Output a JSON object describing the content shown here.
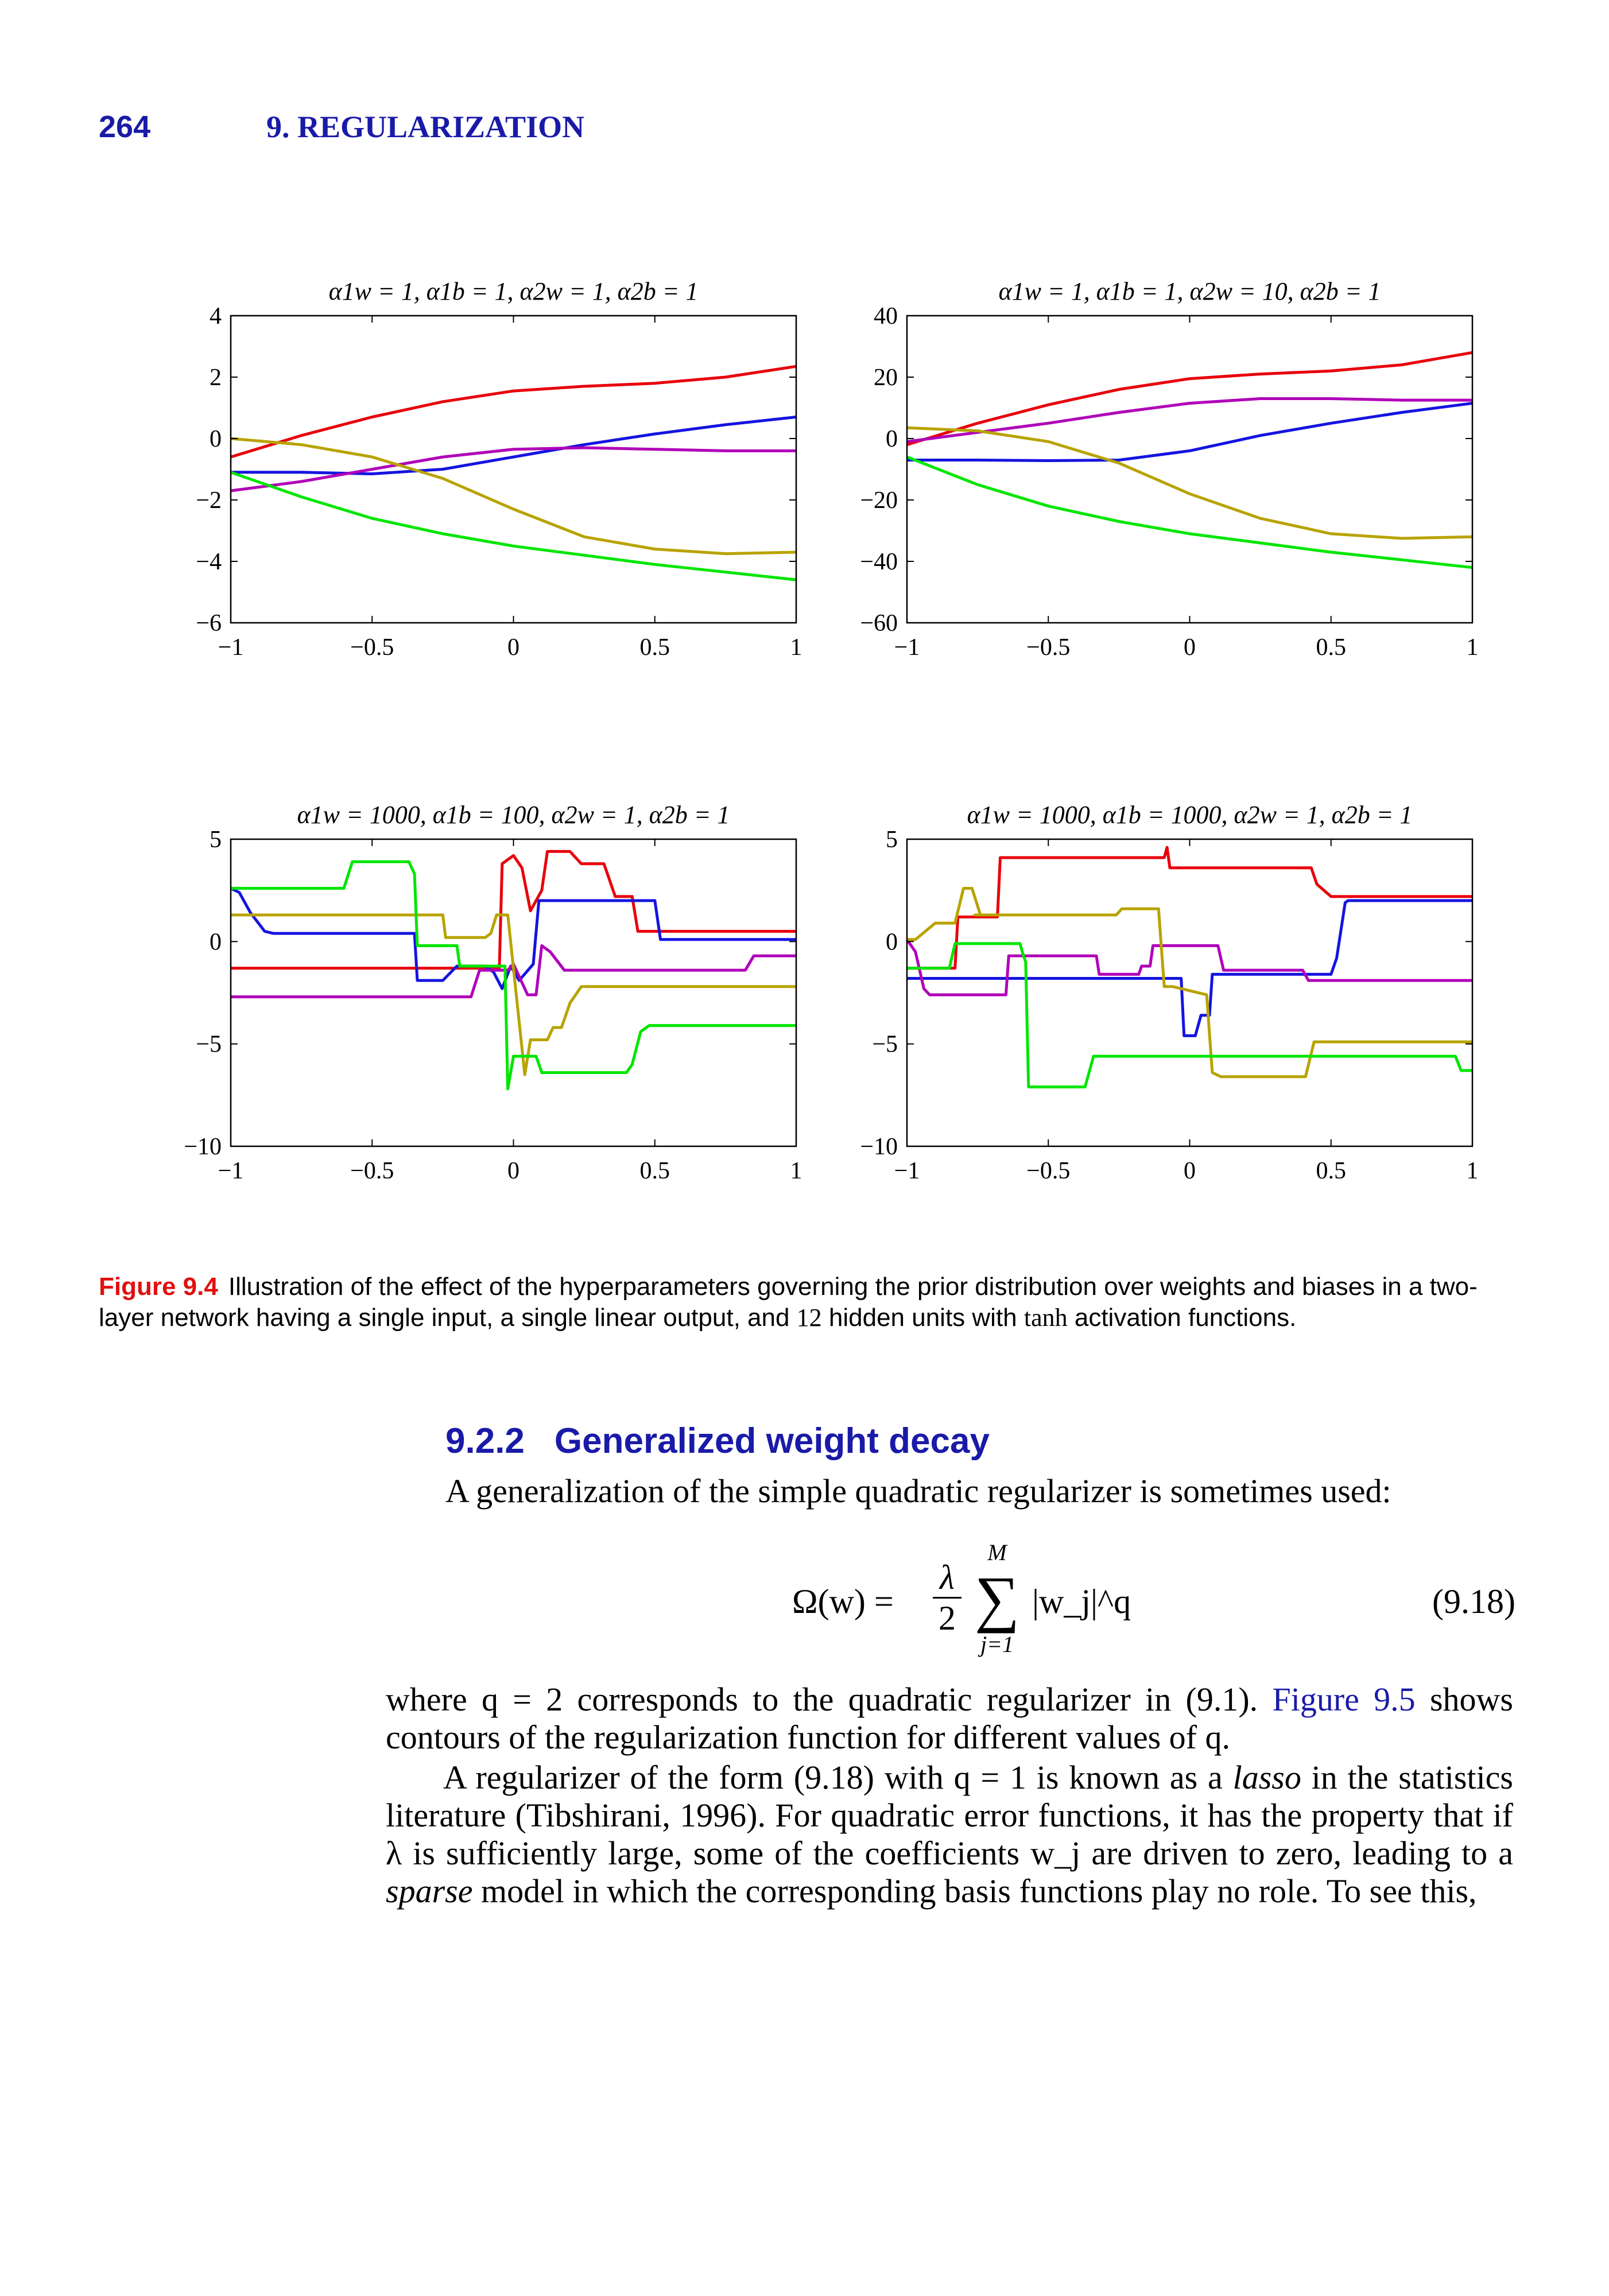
{
  "header": {
    "page_number": "264",
    "chapter_title": "9. REGULARIZATION"
  },
  "figure": {
    "label": "Figure 9.4",
    "caption_parts": [
      "Illustration of the effect of the hyperparameters governing the prior distribution over weights and biases in a two-layer network having a single input, a single linear output, and ",
      "12",
      " hidden units with ",
      "tanh",
      " activation functions."
    ]
  },
  "section": {
    "number": "9.2.2",
    "title": "Generalized weight decay",
    "intro": "A generalization of the simple quadratic regularizer is sometimes used:"
  },
  "equation": {
    "lhs": "Ω(w) =",
    "numerator": "λ",
    "denominator": "2",
    "sum_upper": "M",
    "sum_symbol": "∑",
    "sum_lower": "j=1",
    "rhs": "|w_j|^q",
    "number": "(9.18)"
  },
  "paragraphs": [
    {
      "parts": [
        "where q = 2 corresponds to the quadratic regularizer in (9.1). ",
        "Figure 9.5",
        " shows contours of the regularization function for different values of q."
      ]
    },
    {
      "parts": [
        "A regularizer of the form (9.18) with q = 1 is known as a ",
        "lasso",
        " in the statistics literature (Tibshirani, 1996). For quadratic error functions, it has the property that if λ is sufficiently large, some of the coefficients w_j are driven to zero, leading to a ",
        "sparse",
        " model in which the corresponding basis functions play no role. To see this,"
      ]
    }
  ],
  "series_colors": {
    "red": "#e8000b",
    "blue": "#1414e0",
    "magenta": "#b000b8",
    "olive": "#b8a300",
    "green": "#00e600"
  },
  "chart_data": [
    {
      "type": "line",
      "title": "α1w = 1, α1b = 1, α2w = 1, α2b = 1",
      "xlim": [
        -1,
        1
      ],
      "ylim": [
        -6,
        4
      ],
      "xticks": [
        "−1",
        "−0.5",
        "0",
        "0.5",
        "1"
      ],
      "yticks": [
        "4",
        "2",
        "0",
        "−2",
        "−4",
        "−6"
      ],
      "series": [
        {
          "color": "red",
          "x": [
            -1,
            -0.75,
            -0.5,
            -0.25,
            0,
            0.25,
            0.5,
            0.75,
            1
          ],
          "y": [
            -0.6,
            0.1,
            0.7,
            1.2,
            1.55,
            1.7,
            1.8,
            2.0,
            2.35
          ]
        },
        {
          "color": "blue",
          "x": [
            -1,
            -0.75,
            -0.5,
            -0.25,
            0,
            0.25,
            0.5,
            0.75,
            1
          ],
          "y": [
            -1.1,
            -1.1,
            -1.15,
            -1.0,
            -0.6,
            -0.2,
            0.15,
            0.45,
            0.7
          ]
        },
        {
          "color": "magenta",
          "x": [
            -1,
            -0.75,
            -0.5,
            -0.25,
            0,
            0.25,
            0.5,
            0.75,
            1
          ],
          "y": [
            -1.7,
            -1.4,
            -1.0,
            -0.6,
            -0.35,
            -0.3,
            -0.35,
            -0.4,
            -0.4
          ]
        },
        {
          "color": "olive",
          "x": [
            -1,
            -0.75,
            -0.5,
            -0.25,
            0,
            0.25,
            0.5,
            0.75,
            1
          ],
          "y": [
            0.0,
            -0.2,
            -0.6,
            -1.3,
            -2.3,
            -3.2,
            -3.6,
            -3.75,
            -3.7
          ]
        },
        {
          "color": "green",
          "x": [
            -1,
            -0.75,
            -0.5,
            -0.25,
            0,
            0.25,
            0.5,
            0.75,
            1
          ],
          "y": [
            -1.1,
            -1.9,
            -2.6,
            -3.1,
            -3.5,
            -3.8,
            -4.1,
            -4.35,
            -4.6
          ]
        }
      ]
    },
    {
      "type": "line",
      "title": "α1w = 1, α1b = 1, α2w = 10, α2b = 1",
      "xlim": [
        -1,
        1
      ],
      "ylim": [
        -60,
        40
      ],
      "xticks": [
        "−1",
        "−0.5",
        "0",
        "0.5",
        "1"
      ],
      "yticks": [
        "40",
        "20",
        "0",
        "−20",
        "−40",
        "−60"
      ],
      "series": [
        {
          "color": "red",
          "x": [
            -1,
            -0.75,
            -0.5,
            -0.25,
            0,
            0.25,
            0.5,
            0.75,
            1
          ],
          "y": [
            -2,
            5,
            11,
            16,
            19.5,
            21,
            22,
            24,
            28
          ]
        },
        {
          "color": "magenta",
          "x": [
            -1,
            -0.75,
            -0.5,
            -0.25,
            0,
            0.25,
            0.5,
            0.75,
            1
          ],
          "y": [
            -1,
            2,
            5,
            8.5,
            11.5,
            13,
            13,
            12.5,
            12.5
          ]
        },
        {
          "color": "blue",
          "x": [
            -1,
            -0.75,
            -0.5,
            -0.25,
            0,
            0.25,
            0.5,
            0.75,
            1
          ],
          "y": [
            -7,
            -7,
            -7.2,
            -7,
            -4,
            1,
            5,
            8.5,
            11.5
          ]
        },
        {
          "color": "olive",
          "x": [
            -1,
            -0.75,
            -0.5,
            -0.25,
            0,
            0.25,
            0.5,
            0.75,
            1
          ],
          "y": [
            3.5,
            2.5,
            -1,
            -8,
            -18,
            -26,
            -31,
            -32.5,
            -32
          ]
        },
        {
          "color": "green",
          "x": [
            -1,
            -0.75,
            -0.5,
            -0.25,
            0,
            0.25,
            0.5,
            0.75,
            1
          ],
          "y": [
            -6,
            -15,
            -22,
            -27,
            -31,
            -34,
            -37,
            -39.5,
            -42
          ]
        }
      ]
    },
    {
      "type": "line",
      "title": "α1w = 1000, α1b = 100, α2w = 1, α2b = 1",
      "xlim": [
        -1,
        1
      ],
      "ylim": [
        -10,
        5
      ],
      "xticks": [
        "−1",
        "−0.5",
        "0",
        "0.5",
        "1"
      ],
      "yticks": [
        "5",
        "0",
        "−5",
        "−10"
      ],
      "series": [
        {
          "color": "red",
          "x": [
            -1,
            -0.05,
            -0.04,
            0,
            0.03,
            0.06,
            0.1,
            0.12,
            0.2,
            0.24,
            0.32,
            0.36,
            0.42,
            0.44,
            0.5,
            1
          ],
          "y": [
            -1.3,
            -1.3,
            3.8,
            4.2,
            3.6,
            1.5,
            2.5,
            4.4,
            4.4,
            3.8,
            3.8,
            2.2,
            2.2,
            0.5,
            0.5,
            0.5
          ]
        },
        {
          "color": "blue",
          "x": [
            -1,
            -0.97,
            -0.93,
            -0.88,
            -0.85,
            -0.35,
            -0.34,
            -0.25,
            -0.2,
            -0.17,
            -0.1,
            -0.07,
            -0.04,
            -0.01,
            0.02,
            0.07,
            0.09,
            0.5,
            0.52,
            1
          ],
          "y": [
            2.6,
            2.4,
            1.4,
            0.5,
            0.4,
            0.4,
            -1.9,
            -1.9,
            -1.2,
            -1.2,
            -1.2,
            -1.5,
            -2.3,
            -1.2,
            -1.9,
            -1.1,
            2.0,
            2.0,
            0.1,
            0.1
          ]
        },
        {
          "color": "magenta",
          "x": [
            -1,
            -0.38,
            -0.37,
            -0.15,
            -0.12,
            -0.06,
            -0.02,
            0,
            0.05,
            0.08,
            0.1,
            0.13,
            0.18,
            0.82,
            0.85,
            1
          ],
          "y": [
            -2.7,
            -2.7,
            -2.7,
            -2.7,
            -1.4,
            -1.4,
            -1.4,
            -1.1,
            -2.6,
            -2.6,
            -0.2,
            -0.5,
            -1.4,
            -1.4,
            -0.7,
            -0.7
          ]
        },
        {
          "color": "olive",
          "x": [
            -1,
            -0.25,
            -0.24,
            -0.1,
            -0.08,
            -0.06,
            -0.02,
            0.04,
            0.06,
            0.07,
            0.12,
            0.14,
            0.17,
            0.2,
            0.24,
            1
          ],
          "y": [
            1.3,
            1.3,
            0.2,
            0.2,
            0.4,
            1.3,
            1.3,
            -6.5,
            -4.8,
            -4.8,
            -4.8,
            -4.2,
            -4.2,
            -3.0,
            -2.2,
            -2.2
          ]
        },
        {
          "color": "green",
          "x": [
            -1,
            -0.6,
            -0.57,
            -0.37,
            -0.35,
            -0.34,
            -0.2,
            -0.19,
            -0.03,
            -0.02,
            0,
            0.03,
            0.08,
            0.1,
            0.12,
            0.4,
            0.42,
            0.45,
            0.48,
            1
          ],
          "y": [
            2.6,
            2.6,
            3.9,
            3.9,
            3.3,
            -0.2,
            -0.2,
            -1.2,
            -1.2,
            -7.2,
            -5.6,
            -5.6,
            -5.6,
            -6.4,
            -6.4,
            -6.4,
            -6.0,
            -4.4,
            -4.1,
            -4.1
          ]
        }
      ]
    },
    {
      "type": "line",
      "title": "α1w = 1000, α1b = 1000, α2w = 1, α2b = 1",
      "xlim": [
        -1,
        1
      ],
      "ylim": [
        -10,
        5
      ],
      "xticks": [
        "−1",
        "−0.5",
        "0",
        "0.5",
        "1"
      ],
      "yticks": [
        "5",
        "0",
        "−5",
        "−10"
      ],
      "series": [
        {
          "color": "red",
          "x": [
            -1,
            -0.83,
            -0.82,
            -0.75,
            -0.72,
            -0.68,
            -0.67,
            -0.09,
            -0.08,
            -0.07,
            0.43,
            0.45,
            0.5,
            1
          ],
          "y": [
            -1.3,
            -1.3,
            1.2,
            1.2,
            1.2,
            1.2,
            4.1,
            4.1,
            4.6,
            3.6,
            3.6,
            2.8,
            2.2,
            2.2
          ]
        },
        {
          "color": "blue",
          "x": [
            -1,
            -0.03,
            -0.02,
            0.02,
            0.04,
            0.07,
            0.08,
            0.5,
            0.52,
            0.55,
            0.56,
            1
          ],
          "y": [
            -1.8,
            -1.8,
            -4.6,
            -4.6,
            -3.6,
            -3.6,
            -1.6,
            -1.6,
            -0.8,
            1.9,
            2.0,
            2.0
          ]
        },
        {
          "color": "magenta",
          "x": [
            -1,
            -0.97,
            -0.94,
            -0.92,
            -0.65,
            -0.64,
            -0.33,
            -0.32,
            -0.18,
            -0.17,
            -0.14,
            -0.13,
            0.1,
            0.12,
            0.4,
            0.42,
            1
          ],
          "y": [
            0.1,
            -0.5,
            -2.3,
            -2.6,
            -2.6,
            -0.7,
            -0.7,
            -1.6,
            -1.6,
            -1.2,
            -1.2,
            -0.2,
            -0.2,
            -1.4,
            -1.4,
            -1.9,
            -1.9
          ]
        },
        {
          "color": "olive",
          "x": [
            -1,
            -0.97,
            -0.9,
            -0.83,
            -0.8,
            -0.77,
            -0.74,
            -0.76,
            -0.26,
            -0.24,
            -0.11,
            -0.09,
            -0.06,
            0.06,
            0.08,
            0.11,
            0.41,
            0.44,
            1
          ],
          "y": [
            0.1,
            0.1,
            0.9,
            0.9,
            2.6,
            2.6,
            1.3,
            1.3,
            1.3,
            1.6,
            1.6,
            -2.2,
            -2.2,
            -2.6,
            -6.4,
            -6.6,
            -6.6,
            -4.9,
            -4.9
          ]
        },
        {
          "color": "green",
          "x": [
            -1,
            -0.85,
            -0.83,
            -0.6,
            -0.59,
            -0.58,
            -0.57,
            -0.38,
            -0.37,
            -0.34,
            0.94,
            0.96,
            0.97,
            1
          ],
          "y": [
            -1.3,
            -1.3,
            -0.1,
            -0.1,
            -0.6,
            -1.0,
            -7.1,
            -7.1,
            -7.1,
            -5.6,
            -5.6,
            -6.3,
            -6.3,
            -6.3
          ]
        }
      ]
    }
  ]
}
